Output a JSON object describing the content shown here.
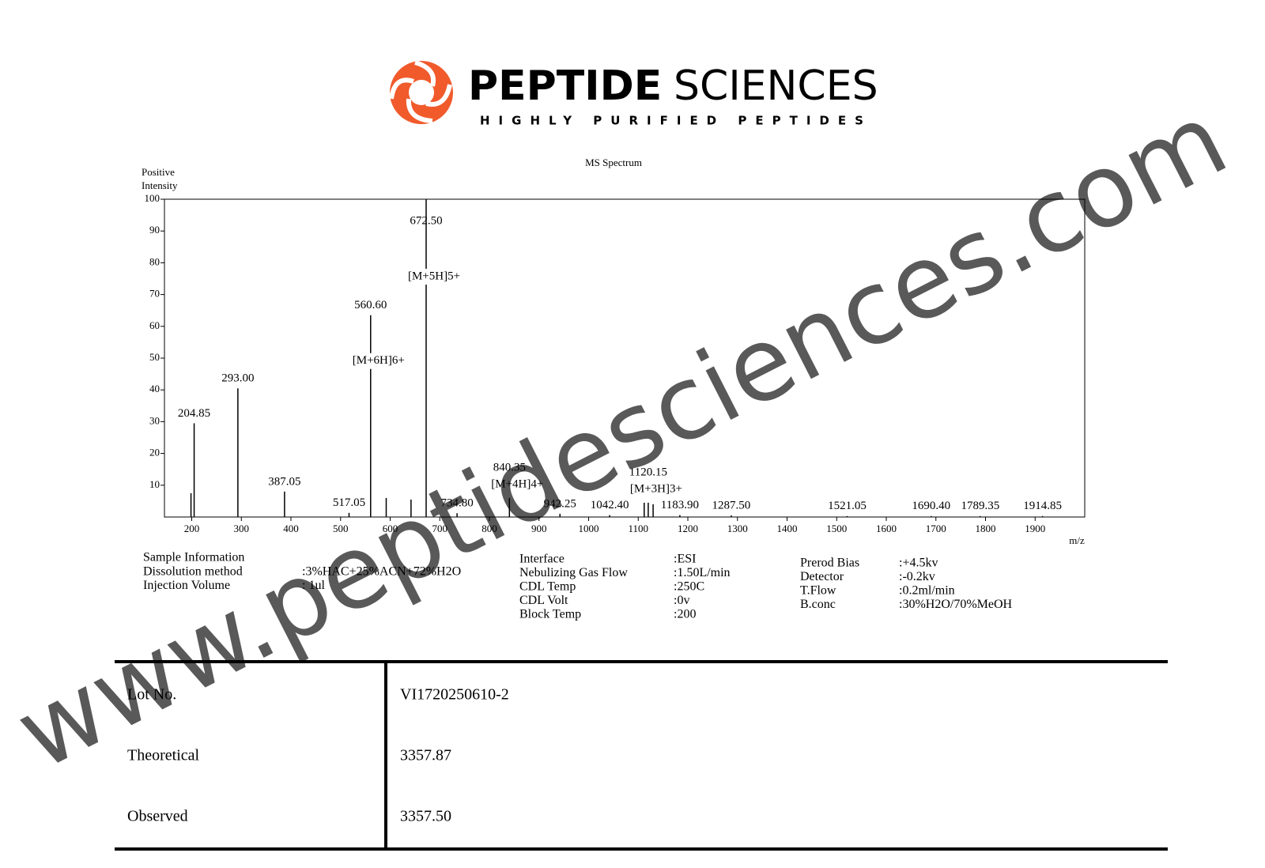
{
  "header": {
    "brand_bold": "PEPTIDE",
    "brand_light": "SCIENCES",
    "tagline": "HIGHLY PURIFIED PEPTIDES"
  },
  "chart_data": {
    "type": "spectrum",
    "title": "MS Spectrum",
    "y_label": [
      "Positive",
      "Intensity"
    ],
    "x_label": "m/z",
    "color": "#000000",
    "x": [
      198.5,
      204.85,
      293.0,
      387.05,
      517.05,
      560.6,
      592.0,
      642.0,
      672.5,
      734.8,
      840.35,
      942.25,
      1042.4,
      1112.0,
      1120.15,
      1130.0,
      1183.9,
      1287.5,
      1521.05,
      1690.4,
      1789.35,
      1914.85
    ],
    "values": [
      7.5,
      29.5,
      40.5,
      8,
      1.3,
      63.5,
      6,
      5.5,
      100,
      1.2,
      6,
      1,
      0.6,
      4.5,
      4.5,
      4,
      0.6,
      0.5,
      0.3,
      0.3,
      0.3,
      0.3
    ],
    "peak_labels": [
      null,
      "204.85",
      "293.00",
      "387.05",
      "517.05",
      "560.60",
      null,
      null,
      "672.50",
      "734.80",
      "840.35",
      "942.25",
      "1042.40",
      null,
      "1120.15",
      null,
      "1183.90",
      "1287.50",
      "1521.05",
      "1690.40",
      "1789.35",
      "1914.85"
    ],
    "peak_notes": [
      null,
      null,
      null,
      null,
      null,
      "[M+6H]6+",
      null,
      null,
      "[M+5H]5+",
      null,
      "[M+4H]4+",
      null,
      null,
      null,
      "[M+3H]3+",
      null,
      null,
      null,
      null,
      null,
      null,
      null
    ],
    "xlim": [
      145,
      2000
    ],
    "xticks": [
      200,
      300,
      400,
      500,
      600,
      700,
      800,
      900,
      1000,
      1100,
      1200,
      1300,
      1400,
      1500,
      1600,
      1700,
      1800,
      1900
    ],
    "ylim": [
      0,
      100
    ],
    "yticks": [
      10,
      20,
      30,
      40,
      50,
      60,
      70,
      80,
      90,
      100
    ]
  },
  "sample_info": {
    "heading": "Sample Information",
    "columns": [
      [
        [
          "Dissolution method",
          ":3%HAC+25%ACN+72%H2O"
        ],
        [
          "Injection Volume",
          ": 1ul"
        ]
      ],
      [
        [
          "Interface",
          ":ESI"
        ],
        [
          "Nebulizing Gas Flow",
          ":1.50L/min"
        ],
        [
          "CDL Temp",
          ":250C"
        ],
        [
          "CDL Volt",
          ":0v"
        ],
        [
          "Block Temp",
          ":200"
        ]
      ],
      [
        [
          "Prerod Bias",
          ":+4.5kv"
        ],
        [
          "Detector",
          ":-0.2kv"
        ],
        [
          "T.Flow",
          ":0.2ml/min"
        ],
        [
          "B.conc",
          ":30%H2O/70%MeOH"
        ]
      ]
    ]
  },
  "table": {
    "rows": [
      [
        "Lot No.",
        "VI1720250610-2"
      ],
      [
        "Theoretical",
        "3357.87"
      ],
      [
        "Observed",
        "3357.50"
      ]
    ]
  },
  "watermark": "www.peptidesciences.com"
}
